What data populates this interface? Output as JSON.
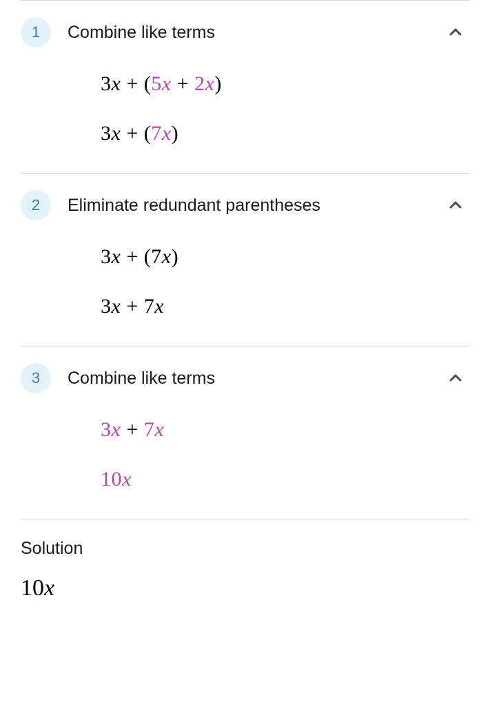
{
  "colors": {
    "badge_bg": "#e3f2fb",
    "badge_text": "#3b7cb5",
    "border": "#d6d6d6",
    "text": "#1a1a1a",
    "math_black": "#000000",
    "highlight_purple": "#b446b4"
  },
  "steps": [
    {
      "number": "1",
      "title": "Combine like terms",
      "lines": [
        [
          {
            "t": "3",
            "c": "#000000"
          },
          {
            "t": "x",
            "c": "#000000",
            "var": true
          },
          {
            "t": " + (",
            "c": "#000000"
          },
          {
            "t": "5",
            "c": "#b446b4"
          },
          {
            "t": "x",
            "c": "#b446b4",
            "var": true
          },
          {
            "t": " + ",
            "c": "#000000"
          },
          {
            "t": "2",
            "c": "#b446b4"
          },
          {
            "t": "x",
            "c": "#b446b4",
            "var": true
          },
          {
            "t": ")",
            "c": "#000000"
          }
        ],
        [
          {
            "t": "3",
            "c": "#000000"
          },
          {
            "t": "x",
            "c": "#000000",
            "var": true
          },
          {
            "t": " + (",
            "c": "#000000"
          },
          {
            "t": "7",
            "c": "#b446b4"
          },
          {
            "t": "x",
            "c": "#b446b4",
            "var": true
          },
          {
            "t": ")",
            "c": "#000000"
          }
        ]
      ]
    },
    {
      "number": "2",
      "title": "Eliminate redundant parentheses",
      "lines": [
        [
          {
            "t": "3",
            "c": "#000000"
          },
          {
            "t": "x",
            "c": "#000000",
            "var": true
          },
          {
            "t": " + (7",
            "c": "#000000"
          },
          {
            "t": "x",
            "c": "#000000",
            "var": true
          },
          {
            "t": ")",
            "c": "#000000"
          }
        ],
        [
          {
            "t": "3",
            "c": "#000000"
          },
          {
            "t": "x",
            "c": "#000000",
            "var": true
          },
          {
            "t": " + 7",
            "c": "#000000"
          },
          {
            "t": "x",
            "c": "#000000",
            "var": true
          }
        ]
      ]
    },
    {
      "number": "3",
      "title": "Combine like terms",
      "lines": [
        [
          {
            "t": "3",
            "c": "#b446b4"
          },
          {
            "t": "x",
            "c": "#b446b4",
            "var": true
          },
          {
            "t": " + ",
            "c": "#000000"
          },
          {
            "t": "7",
            "c": "#b446b4"
          },
          {
            "t": "x",
            "c": "#b446b4",
            "var": true
          }
        ],
        [
          {
            "t": "10",
            "c": "#b446b4"
          },
          {
            "t": "x",
            "c": "#b446b4",
            "var": true
          }
        ]
      ]
    }
  ],
  "solution": {
    "label": "Solution",
    "value": [
      {
        "t": "10",
        "c": "#000000"
      },
      {
        "t": "x",
        "c": "#000000",
        "var": true
      }
    ]
  }
}
